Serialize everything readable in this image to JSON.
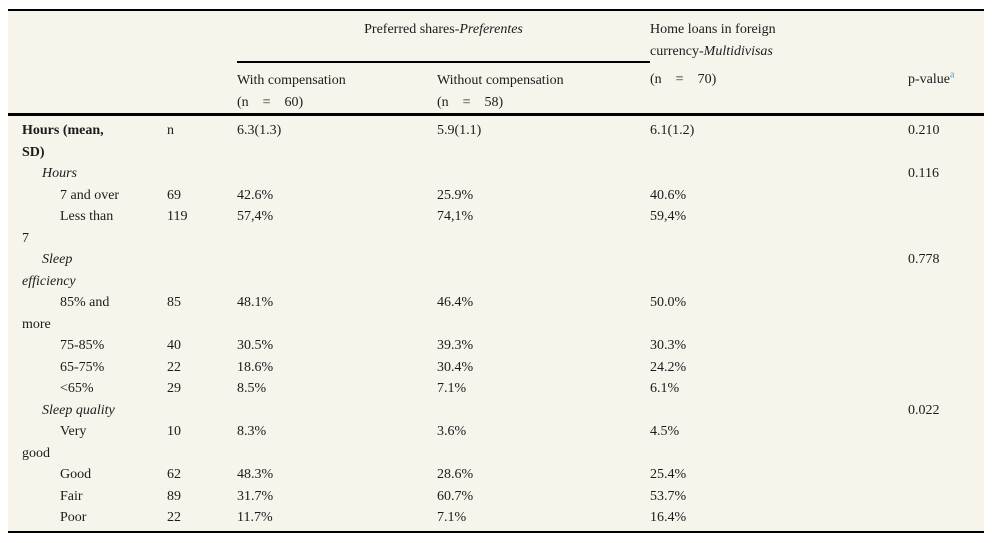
{
  "page": {
    "background": "#ffffff",
    "table_background": "#f7f4ec",
    "rule_color": "#000000",
    "text_color": "#1b1b1b",
    "footnote_marker_color": "#4fa0d6"
  },
  "header": {
    "preferred_group": {
      "prefix": "Preferred shares-",
      "italic": "Preferentes"
    },
    "home_group": {
      "line1": "Home loans in foreign",
      "line2_prefix": "currency-",
      "line2_italic": "Multidivisas"
    },
    "col_with": {
      "line1": "With compensation",
      "line2": "(n = 60)"
    },
    "col_without": {
      "line1": "Without compensation",
      "line2": "(n = 58)"
    },
    "col_home_n": "(n = 70)",
    "col_pvalue": {
      "label": "p-value",
      "superscript": "a"
    }
  },
  "rows": [
    {
      "label_lines": [
        "Hours (mean,",
        "SD)"
      ],
      "indent": 0,
      "bold": true,
      "italic": false,
      "n": "n",
      "with_comp": "6.3(1.3)",
      "without_comp": "5.9(1.1)",
      "home": "6.1(1.2)",
      "p": "0.210"
    },
    {
      "label_lines": [
        "Hours"
      ],
      "indent": 1,
      "bold": false,
      "italic": true,
      "n": "",
      "with_comp": "",
      "without_comp": "",
      "home": "",
      "p": "0.116"
    },
    {
      "label_lines": [
        "7 and over"
      ],
      "indent": 2,
      "bold": false,
      "italic": false,
      "n": "69",
      "with_comp": "42.6%",
      "without_comp": "25.9%",
      "home": "40.6%",
      "p": ""
    },
    {
      "label_lines": [
        "Less than",
        "7"
      ],
      "indent": 2,
      "bold": false,
      "italic": false,
      "n": "119",
      "with_comp": "57,4%",
      "without_comp": "74,1%",
      "home": "59,4%",
      "p": ""
    },
    {
      "label_lines": [
        "Sleep",
        "efficiency"
      ],
      "indent": 1,
      "bold": false,
      "italic": true,
      "n": "",
      "with_comp": "",
      "without_comp": "",
      "home": "",
      "p": "0.778"
    },
    {
      "label_lines": [
        "85% and",
        "more"
      ],
      "indent": 2,
      "bold": false,
      "italic": false,
      "n": "85",
      "with_comp": "48.1%",
      "without_comp": "46.4%",
      "home": "50.0%",
      "p": ""
    },
    {
      "label_lines": [
        "75-85%"
      ],
      "indent": 2,
      "bold": false,
      "italic": false,
      "n": "40",
      "with_comp": "30.5%",
      "without_comp": "39.3%",
      "home": "30.3%",
      "p": ""
    },
    {
      "label_lines": [
        "65-75%"
      ],
      "indent": 2,
      "bold": false,
      "italic": false,
      "n": "22",
      "with_comp": "18.6%",
      "without_comp": "30.4%",
      "home": "24.2%",
      "p": ""
    },
    {
      "label_lines": [
        "<65%"
      ],
      "indent": 2,
      "bold": false,
      "italic": false,
      "n": "29",
      "with_comp": "8.5%",
      "without_comp": "7.1%",
      "home": "6.1%",
      "p": ""
    },
    {
      "label_lines": [
        "Sleep quality"
      ],
      "indent": 1,
      "bold": false,
      "italic": true,
      "n": "",
      "with_comp": "",
      "without_comp": "",
      "home": "",
      "p": "0.022"
    },
    {
      "label_lines": [
        "Very",
        "good"
      ],
      "indent": 2,
      "bold": false,
      "italic": false,
      "n": "10",
      "with_comp": "8.3%",
      "without_comp": "3.6%",
      "home": "4.5%",
      "p": ""
    },
    {
      "label_lines": [
        "Good"
      ],
      "indent": 2,
      "bold": false,
      "italic": false,
      "n": "62",
      "with_comp": "48.3%",
      "without_comp": "28.6%",
      "home": "25.4%",
      "p": ""
    },
    {
      "label_lines": [
        "Fair"
      ],
      "indent": 2,
      "bold": false,
      "italic": false,
      "n": "89",
      "with_comp": "31.7%",
      "without_comp": "60.7%",
      "home": "53.7%",
      "p": ""
    },
    {
      "label_lines": [
        "Poor"
      ],
      "indent": 2,
      "bold": false,
      "italic": false,
      "n": "22",
      "with_comp": "11.7%",
      "without_comp": "7.1%",
      "home": "16.4%",
      "p": ""
    }
  ]
}
